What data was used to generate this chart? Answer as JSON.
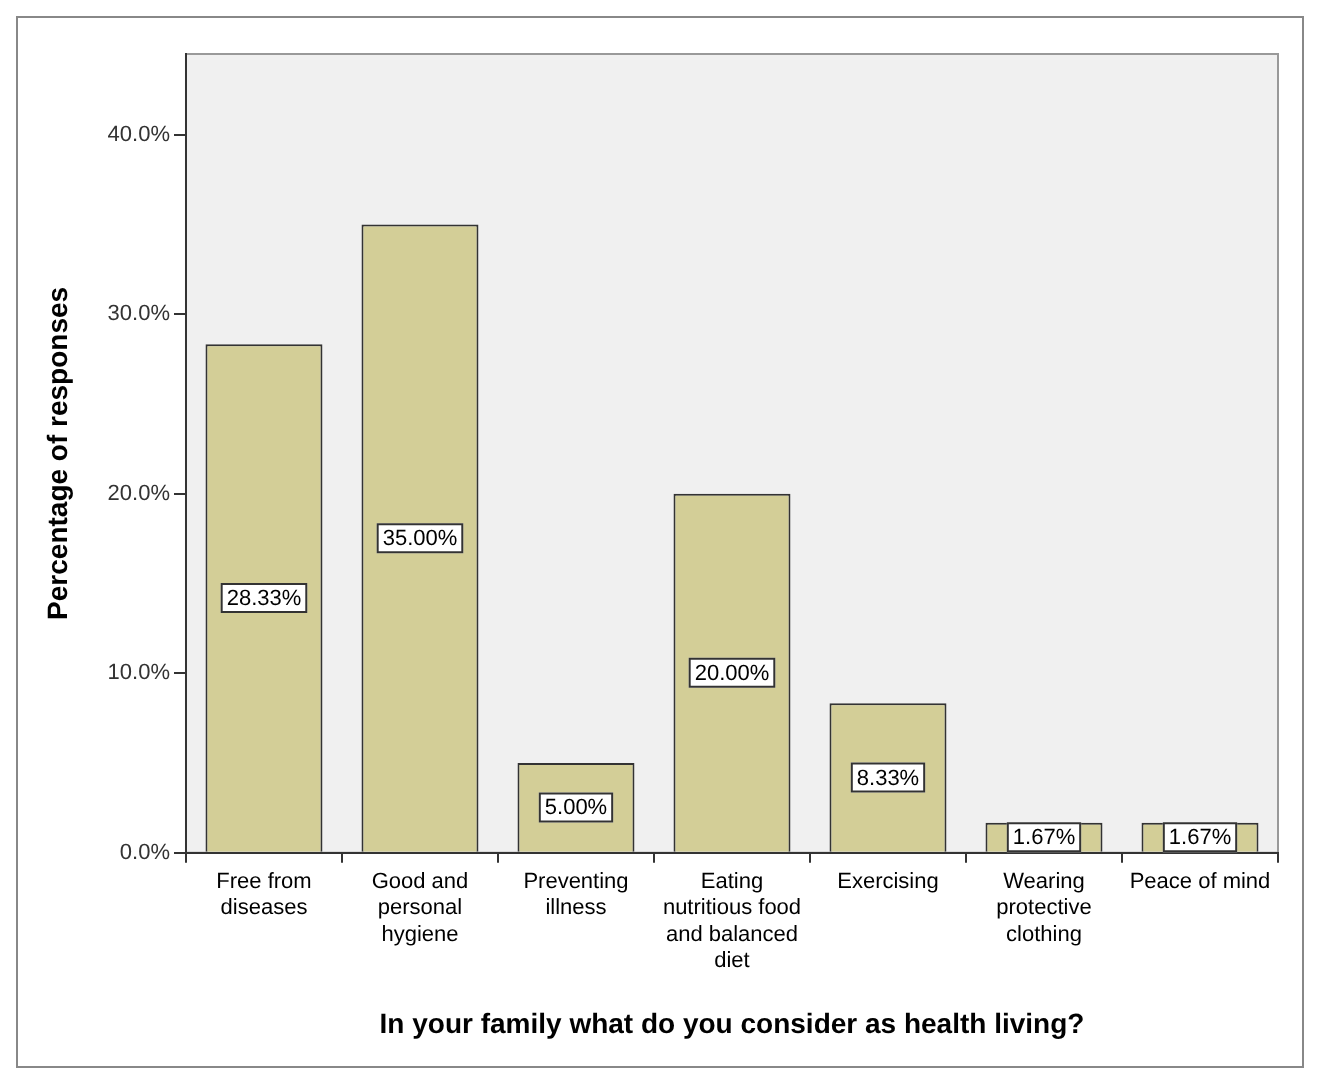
{
  "chart_data": {
    "type": "bar",
    "xlabel": "In your family what do you consider as health living?",
    "ylabel": "Percentage of responses",
    "categories": [
      "Free from diseases",
      "Good and personal hygiene",
      "Preventing illness",
      "Eating nutritious food and balanced diet",
      "Exercising",
      "Wearing protective clothing",
      "Peace of mind"
    ],
    "values": [
      28.33,
      35.0,
      5.0,
      20.0,
      8.33,
      1.67,
      1.67
    ],
    "value_labels": [
      "28.33%",
      "35.00%",
      "5.00%",
      "20.00%",
      "8.33%",
      "1.67%",
      "1.67%"
    ],
    "color": "#d3ce97",
    "ylim": [
      0,
      44.5
    ],
    "yticks": [
      {
        "value": 0,
        "label": "0.0%"
      },
      {
        "value": 10,
        "label": "10.0%"
      },
      {
        "value": 20,
        "label": "20.0%"
      },
      {
        "value": 30,
        "label": "30.0%"
      },
      {
        "value": 40,
        "label": "40.0%"
      }
    ],
    "grid": false,
    "legend": false
  }
}
